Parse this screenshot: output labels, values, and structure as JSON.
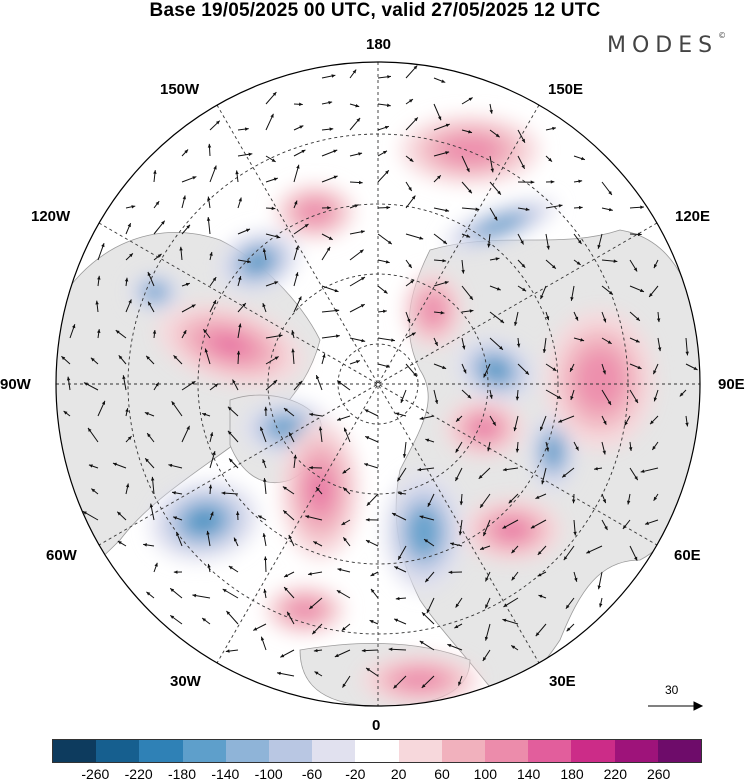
{
  "title": "Base 19/05/2025 00 UTC, valid 27/05/2025 12 UTC",
  "brand": {
    "text": "MODES",
    "mark": "©"
  },
  "longitude_labels": {
    "top": "180",
    "top_left": "150W",
    "top_right": "150E",
    "upper_left": "120W",
    "upper_right": "120E",
    "left": "90W",
    "right": "90E",
    "lower_left": "60W",
    "lower_right": "60E",
    "bottom_left": "30W",
    "bottom_right": "30E",
    "bottom": "0"
  },
  "wind_scale": {
    "label": "30"
  },
  "colorbar": {
    "colors": [
      "#0d3b5e",
      "#165f8f",
      "#2f81b6",
      "#5e9fcb",
      "#8fb4d8",
      "#b9c7e3",
      "#e1e1ef",
      "#ffffff",
      "#f7d8dc",
      "#f1b1bd",
      "#ec8cab",
      "#e25e9c",
      "#cc2c88",
      "#9e137a",
      "#6e0c6a"
    ],
    "tick_labels": [
      "-260",
      "-220",
      "-180",
      "-140",
      "-100",
      "-60",
      "-20",
      "20",
      "60",
      "100",
      "140",
      "180",
      "220",
      "260"
    ]
  },
  "anomaly_features": [
    {
      "sign": "negative",
      "strength": 3
    },
    {
      "sign": "negative",
      "strength": 3
    },
    {
      "sign": "negative",
      "strength": 2
    },
    {
      "sign": "negative",
      "strength": 3
    },
    {
      "sign": "negative",
      "strength": 3
    },
    {
      "sign": "negative",
      "strength": 2
    },
    {
      "sign": "negative",
      "strength": 2
    },
    {
      "sign": "negative",
      "strength": 2
    },
    {
      "sign": "positive",
      "strength": 3
    },
    {
      "sign": "positive",
      "strength": 3
    },
    {
      "sign": "positive",
      "strength": 3
    },
    {
      "sign": "positive",
      "strength": 3
    },
    {
      "sign": "positive",
      "strength": 2
    },
    {
      "sign": "positive",
      "strength": 2
    },
    {
      "sign": "positive",
      "strength": 2
    },
    {
      "sign": "positive",
      "strength": 2
    },
    {
      "sign": "positive",
      "strength": 2
    },
    {
      "sign": "positive",
      "strength": 2
    }
  ]
}
